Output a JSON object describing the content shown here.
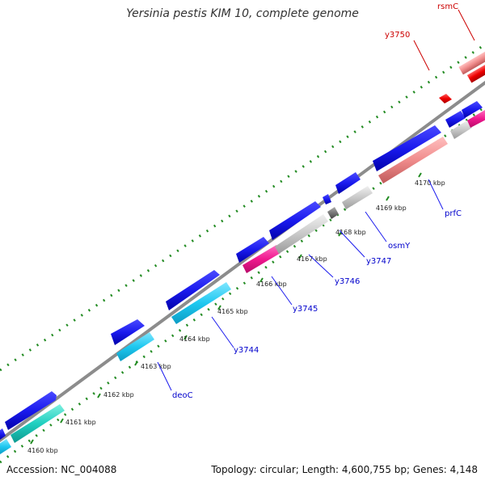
{
  "title": "Yersinia pestis KIM 10, complete genome",
  "footer": {
    "accession": "Accession: NC_004088",
    "summary": "Topology: circular; Length: 4,600,755 bp; Genes: 4,148"
  },
  "colors": {
    "forward_gene": "#1a1aee",
    "backbone": "#8c8c8c",
    "tick": "#228b22",
    "gene_label": "#0000cc",
    "highlight_label": "#cc0000"
  },
  "position_labels": [
    "4160 kbp",
    "4161 kbp",
    "4162 kbp",
    "4163 kbp",
    "4164 kbp",
    "4165 kbp",
    "4166 kbp",
    "4167 kbp",
    "4168 kbp",
    "4169 kbp",
    "4170 kbp"
  ],
  "gene_labels": [
    {
      "text": "deoC",
      "color": "#0000cc"
    },
    {
      "text": "y3744",
      "color": "#0000cc"
    },
    {
      "text": "y3745",
      "color": "#0000cc"
    },
    {
      "text": "y3746",
      "color": "#0000cc"
    },
    {
      "text": "y3747",
      "color": "#0000cc"
    },
    {
      "text": "osmY",
      "color": "#0000cc"
    },
    {
      "text": "prfC",
      "color": "#0000cc"
    },
    {
      "text": "y3750",
      "color": "#cc0000"
    },
    {
      "text": "rsmC",
      "color": "#cc0000"
    }
  ]
}
